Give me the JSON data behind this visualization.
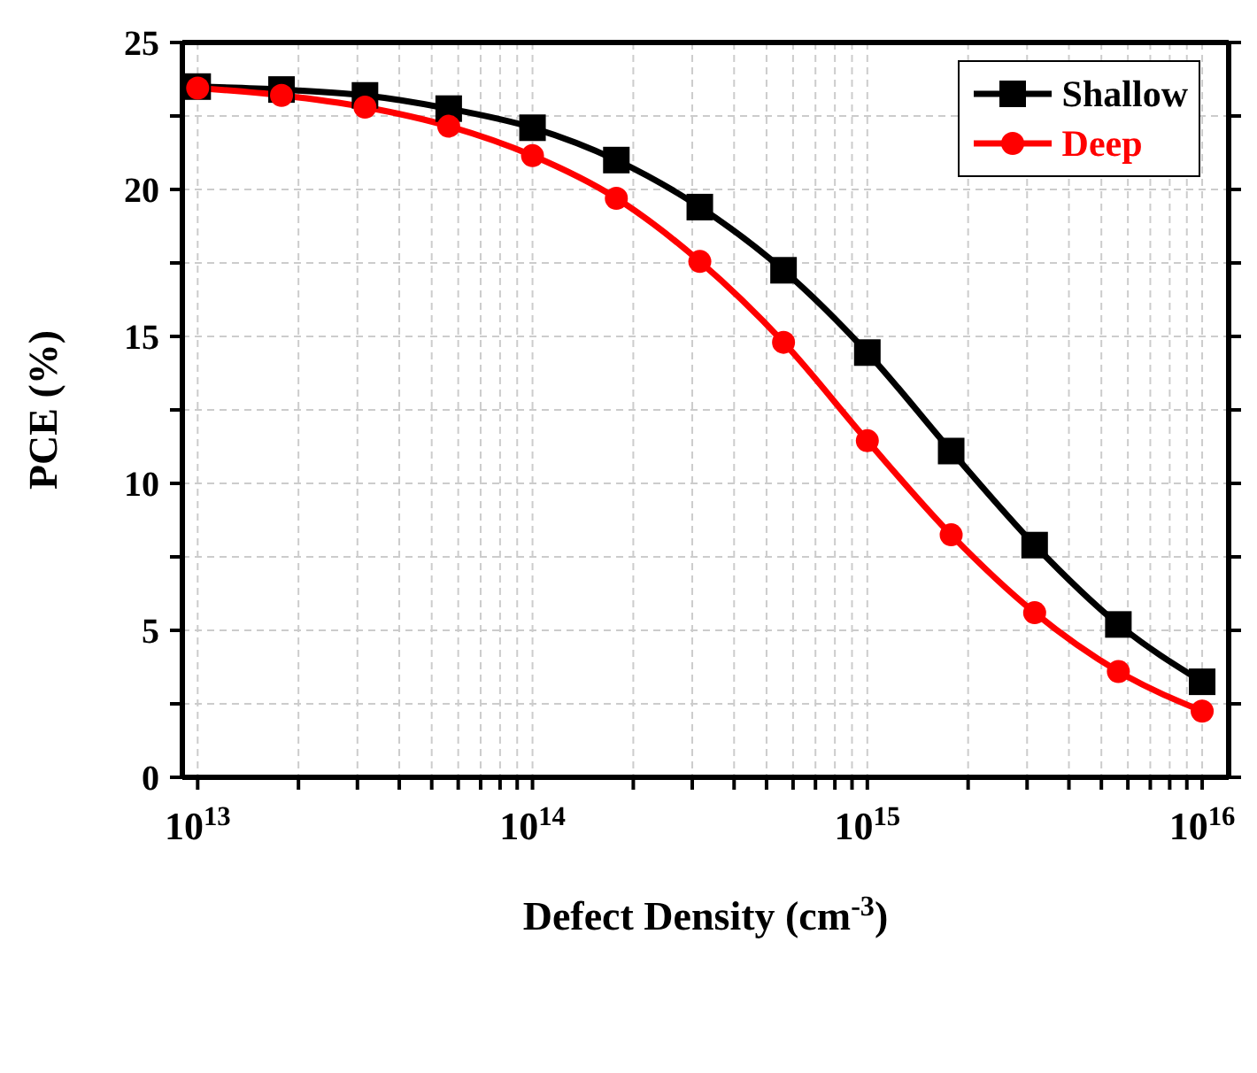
{
  "chart_data": {
    "type": "line",
    "xlabel": "Defect Density (cm$^{-3}$)",
    "ylabel": "PCE (%)",
    "x": [
      10000000000000.0,
      17800000000000.0,
      31600000000000.0,
      56200000000000.0,
      100000000000000.0,
      178000000000000.0,
      316000000000000.0,
      562000000000000.0,
      1000000000000000.0,
      1780000000000000.0,
      3160000000000000.0,
      5620000000000000.0,
      1e+16
    ],
    "series": [
      {
        "name": "Shallow",
        "color": "#000000",
        "marker": "square",
        "values": [
          23.5,
          23.4,
          23.2,
          22.75,
          22.1,
          21.0,
          19.4,
          17.25,
          14.45,
          11.1,
          7.9,
          5.2,
          3.25
        ]
      },
      {
        "name": "Deep",
        "color": "#ff0000",
        "marker": "circle",
        "values": [
          23.45,
          23.2,
          22.8,
          22.15,
          21.15,
          19.7,
          17.55,
          14.8,
          11.45,
          8.25,
          5.6,
          3.6,
          2.25
        ]
      }
    ],
    "log": "x",
    "xlim": [
      9000000000000.0,
      1.2e+16
    ],
    "xticks": [
      {
        "value": 10000000000000.0,
        "label": "10$^{13}$"
      },
      {
        "value": 20000000000000.0,
        "label": null
      },
      {
        "value": 30000000000000.0,
        "label": null
      },
      {
        "value": 40000000000000.0,
        "label": null
      },
      {
        "value": 50000000000000.0,
        "label": null
      },
      {
        "value": 60000000000000.0,
        "label": null
      },
      {
        "value": 70000000000000.0,
        "label": null
      },
      {
        "value": 80000000000000.0,
        "label": null
      },
      {
        "value": 90000000000000.0,
        "label": null
      },
      {
        "value": 100000000000000.0,
        "label": "10$^{14}$"
      },
      {
        "value": 200000000000000.0,
        "label": null
      },
      {
        "value": 300000000000000.0,
        "label": null
      },
      {
        "value": 400000000000000.0,
        "label": null
      },
      {
        "value": 500000000000000.0,
        "label": null
      },
      {
        "value": 600000000000000.0,
        "label": null
      },
      {
        "value": 700000000000000.0,
        "label": null
      },
      {
        "value": 800000000000000.0,
        "label": null
      },
      {
        "value": 900000000000000.0,
        "label": null
      },
      {
        "value": 1000000000000000.0,
        "label": "10$^{15}$"
      },
      {
        "value": 2000000000000000.0,
        "label": null
      },
      {
        "value": 3000000000000000.0,
        "label": null
      },
      {
        "value": 4000000000000000.0,
        "label": null
      },
      {
        "value": 5000000000000000.0,
        "label": null
      },
      {
        "value": 6000000000000000.0,
        "label": null
      },
      {
        "value": 7000000000000000.0,
        "label": null
      },
      {
        "value": 8000000000000000.0,
        "label": null
      },
      {
        "value": 9000000000000000.0,
        "label": null
      },
      {
        "value": 1e+16,
        "label": "10$^{16}$"
      }
    ],
    "ylim": [
      0,
      25
    ],
    "yticks": [
      0,
      {
        "value": 2.5,
        "label": null
      },
      5,
      {
        "value": 7.5,
        "label": null
      },
      10,
      {
        "value": 12.5,
        "label": null
      },
      15,
      {
        "value": 17.5,
        "label": null
      },
      20,
      {
        "value": 22.5,
        "label": null
      },
      25
    ],
    "grid": true,
    "legend": "top right",
    "line_style": "solid"
  }
}
